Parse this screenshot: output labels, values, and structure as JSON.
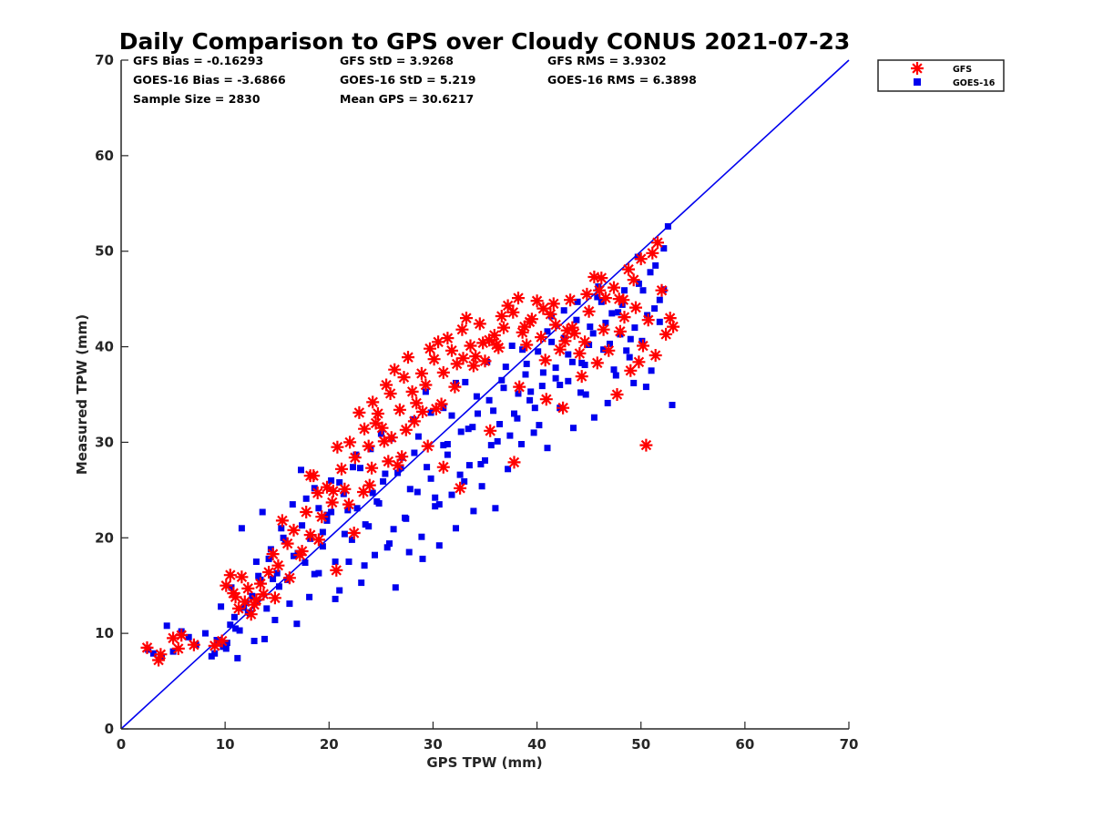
{
  "chart_data": {
    "type": "scatter",
    "title": "Daily Comparison to GPS over Cloudy CONUS 2021-07-23",
    "xlabel": "GPS TPW (mm)",
    "ylabel": "Measured TPW (mm)",
    "xlim": [
      0,
      70
    ],
    "ylim": [
      0,
      70
    ],
    "xticks": [
      0,
      10,
      20,
      30,
      40,
      50,
      60,
      70
    ],
    "yticks": [
      0,
      10,
      20,
      30,
      40,
      50,
      60,
      70
    ],
    "grid": false,
    "legend_position": "outside-top-right",
    "reference_line": {
      "x": [
        0,
        70
      ],
      "y": [
        0,
        70
      ],
      "color": "#0000ee"
    },
    "stats": {
      "gfs_bias": "GFS Bias = -0.16293",
      "gfs_std": "GFS StD = 3.9268",
      "gfs_rms": "GFS RMS = 3.9302",
      "goes_bias": "GOES-16 Bias = -3.6866",
      "goes_std": "GOES-16 StD = 5.219",
      "goes_rms": "GOES-16 RMS = 6.3898",
      "sample_size": "Sample Size = 2830",
      "mean_gps": "Mean GPS = 30.6217"
    },
    "series": [
      {
        "name": "GFS",
        "marker": "asterisk",
        "color": "#ff0000",
        "x": [
          2.5,
          3.6,
          3.8,
          5.0,
          5.5,
          5.8,
          7.0,
          9.0,
          9.7,
          10.1,
          10.5,
          10.8,
          11.0,
          11.3,
          11.6,
          11.9,
          12.2,
          12.5,
          13.0,
          13.4,
          13.7,
          14.2,
          14.6,
          15.1,
          15.5,
          16.0,
          16.6,
          17.2,
          17.8,
          18.2,
          18.5,
          18.9,
          19.3,
          19.8,
          20.3,
          20.8,
          21.2,
          21.5,
          22.0,
          22.5,
          22.9,
          23.4,
          23.8,
          24.2,
          24.7,
          25.1,
          25.5,
          25.9,
          26.3,
          26.8,
          27.2,
          27.6,
          28.0,
          28.4,
          28.9,
          29.3,
          29.7,
          30.1,
          30.5,
          31.0,
          31.4,
          31.8,
          32.3,
          32.8,
          33.2,
          33.6,
          34.1,
          34.5,
          35.0,
          35.4,
          35.9,
          36.3,
          36.8,
          37.2,
          37.7,
          38.2,
          38.6,
          39.0,
          39.5,
          40.0,
          40.4,
          40.8,
          41.3,
          41.8,
          42.2,
          42.7,
          43.2,
          43.6,
          44.1,
          44.6,
          45.0,
          45.5,
          46.0,
          46.4,
          46.9,
          47.4,
          47.9,
          48.4,
          48.8,
          49.3,
          49.8,
          50.2,
          50.7,
          51.1,
          51.6,
          52.0,
          52.8,
          53.1,
          24.5,
          26.0,
          27.0,
          29.5,
          31.0,
          32.6,
          35.5,
          37.8,
          38.3,
          40.9,
          42.5,
          44.3,
          45.8,
          47.7,
          49.0,
          50.5,
          51.4,
          52.4,
          18.2,
          20.4,
          21.9,
          23.3,
          24.1,
          25.3,
          26.6,
          28.2,
          30.3,
          32.1,
          33.9,
          36.1,
          39.3,
          41.6,
          43.4,
          46.6,
          48.3,
          50.0,
          12.8,
          14.8,
          16.2,
          17.4,
          19.0,
          20.7,
          22.4,
          23.9,
          25.7,
          27.4,
          29.0,
          30.8,
          32.9,
          34.8,
          36.6,
          38.8,
          40.6,
          42.9,
          44.8,
          46.2,
          48.0,
          49.5
        ],
        "y": [
          8.5,
          7.2,
          7.8,
          9.5,
          8.4,
          9.8,
          8.8,
          8.7,
          9.2,
          15.0,
          16.1,
          14.2,
          13.8,
          12.6,
          15.9,
          13.3,
          14.7,
          12.0,
          13.5,
          15.2,
          14.1,
          16.4,
          18.3,
          17.1,
          21.8,
          19.4,
          20.8,
          18.2,
          22.7,
          20.3,
          26.5,
          24.7,
          22.2,
          25.3,
          23.7,
          29.5,
          27.2,
          25.1,
          30.0,
          28.4,
          33.1,
          31.4,
          29.6,
          34.2,
          33.0,
          31.5,
          36.0,
          35.1,
          37.6,
          33.4,
          36.8,
          38.9,
          35.3,
          34.1,
          37.2,
          36.0,
          39.8,
          38.7,
          40.5,
          37.3,
          40.9,
          39.6,
          38.2,
          41.8,
          43.0,
          40.1,
          39.0,
          42.4,
          38.5,
          40.7,
          41.2,
          39.9,
          42.0,
          44.3,
          43.6,
          45.1,
          41.5,
          40.2,
          42.9,
          44.8,
          41.0,
          38.6,
          43.4,
          42.3,
          39.7,
          40.6,
          44.9,
          41.4,
          39.3,
          40.5,
          43.7,
          47.3,
          45.9,
          41.8,
          39.6,
          46.2,
          45.0,
          43.1,
          48.1,
          47.0,
          38.4,
          40.1,
          42.8,
          49.8,
          50.9,
          45.9,
          43.0,
          42.1,
          32.0,
          30.5,
          28.5,
          29.6,
          27.4,
          25.2,
          31.2,
          27.9,
          35.8,
          34.5,
          33.6,
          36.9,
          38.3,
          35.0,
          37.5,
          29.7,
          39.1,
          41.3,
          26.5,
          24.9,
          23.5,
          24.8,
          27.3,
          30.1,
          27.6,
          32.2,
          33.5,
          35.8,
          38.0,
          40.2,
          42.6,
          44.5,
          42.0,
          45.1,
          44.9,
          49.2,
          13.0,
          13.7,
          15.8,
          18.6,
          19.8,
          16.6,
          20.5,
          25.5,
          28.0,
          31.3,
          33.2,
          34.0,
          38.8,
          40.4,
          43.2,
          42.1,
          44.0,
          41.7,
          45.5,
          47.2,
          41.6,
          44.1
        ]
      },
      {
        "name": "GOES-16",
        "marker": "square",
        "color": "#0000ee",
        "x": [
          2.6,
          3.1,
          3.9,
          4.4,
          5.0,
          5.8,
          6.5,
          7.2,
          8.1,
          8.7,
          9.2,
          9.6,
          10.1,
          10.5,
          10.9,
          11.2,
          11.6,
          12.0,
          12.4,
          12.8,
          13.2,
          13.6,
          14.0,
          14.4,
          14.8,
          15.2,
          15.6,
          16.0,
          16.5,
          16.9,
          17.3,
          17.7,
          18.1,
          18.6,
          19.0,
          19.4,
          19.8,
          20.2,
          20.6,
          21.0,
          21.5,
          21.9,
          22.3,
          22.7,
          23.1,
          23.5,
          24.0,
          24.4,
          24.8,
          25.2,
          25.6,
          26.0,
          26.4,
          26.9,
          27.3,
          27.7,
          28.1,
          28.5,
          28.9,
          29.3,
          29.8,
          30.2,
          30.6,
          31.0,
          31.4,
          31.8,
          32.2,
          32.7,
          33.1,
          33.5,
          33.9,
          34.3,
          34.7,
          35.2,
          35.6,
          36.0,
          36.4,
          36.8,
          37.2,
          37.6,
          38.1,
          38.5,
          38.9,
          39.3,
          39.7,
          40.1,
          40.5,
          41.0,
          41.4,
          41.8,
          42.2,
          42.6,
          43.0,
          43.5,
          43.9,
          44.3,
          44.7,
          45.1,
          45.5,
          45.9,
          46.4,
          46.8,
          47.2,
          47.6,
          48.0,
          48.4,
          48.9,
          49.3,
          49.7,
          50.1,
          50.5,
          50.9,
          51.3,
          51.8,
          52.2,
          52.6,
          53.0,
          10.2,
          11.0,
          11.8,
          12.6,
          13.4,
          14.2,
          15.0,
          15.8,
          16.6,
          17.4,
          18.2,
          19.0,
          19.8,
          20.6,
          21.4,
          22.2,
          23.0,
          23.8,
          24.6,
          25.4,
          26.2,
          27.0,
          27.8,
          28.6,
          29.4,
          30.2,
          31.0,
          31.8,
          32.6,
          33.4,
          34.2,
          35.0,
          35.8,
          36.6,
          37.4,
          38.2,
          39.0,
          39.8,
          40.6,
          41.4,
          42.2,
          43.0,
          43.8,
          44.6,
          45.4,
          46.2,
          47.0,
          47.8,
          48.6,
          49.4,
          50.2,
          51.0,
          51.8,
          9.0,
          9.8,
          10.6,
          11.4,
          12.2,
          13.0,
          13.8,
          14.6,
          15.4,
          16.2,
          17.0,
          17.8,
          18.6,
          19.4,
          20.2,
          21.0,
          21.8,
          22.6,
          23.4,
          24.2,
          25.0,
          25.8,
          26.6,
          27.4,
          28.2,
          29.0,
          29.8,
          30.6,
          31.4,
          32.2,
          33.0,
          33.8,
          34.6,
          35.4,
          36.2,
          37.0,
          37.8,
          38.6,
          39.4,
          40.2,
          41.0,
          41.8,
          42.6,
          43.4,
          44.2,
          45.0,
          45.8,
          46.6,
          47.4,
          48.2,
          49.0,
          49.8,
          50.6,
          51.4,
          52.2
        ],
        "y": [
          8.3,
          7.9,
          7.5,
          10.8,
          8.1,
          10.2,
          9.6,
          8.8,
          10.0,
          7.6,
          9.3,
          12.8,
          8.4,
          10.9,
          11.7,
          7.4,
          21.0,
          13.2,
          12.1,
          9.2,
          16.0,
          22.7,
          12.6,
          18.8,
          11.4,
          14.9,
          20.0,
          15.6,
          23.5,
          11.0,
          27.1,
          17.4,
          13.8,
          25.2,
          16.3,
          19.1,
          21.8,
          22.7,
          13.6,
          25.8,
          20.4,
          17.5,
          27.4,
          23.1,
          15.3,
          21.4,
          29.3,
          18.2,
          23.6,
          25.9,
          19.0,
          30.4,
          14.8,
          27.3,
          22.1,
          18.5,
          32.4,
          24.8,
          20.1,
          35.3,
          26.2,
          23.3,
          19.2,
          33.6,
          28.7,
          24.5,
          21.0,
          31.1,
          36.3,
          27.6,
          22.8,
          33.0,
          25.4,
          38.4,
          29.7,
          23.1,
          31.9,
          35.7,
          27.2,
          40.1,
          32.5,
          29.8,
          37.1,
          34.4,
          31.0,
          39.5,
          35.9,
          29.4,
          43.2,
          37.8,
          33.6,
          40.9,
          36.4,
          31.5,
          44.7,
          38.3,
          35.0,
          42.1,
          32.6,
          46.3,
          39.7,
          34.1,
          43.5,
          37.0,
          41.3,
          45.9,
          38.9,
          36.2,
          49.4,
          40.6,
          35.8,
          47.8,
          44.0,
          42.6,
          50.3,
          52.6,
          33.9,
          9.0,
          10.5,
          12.7,
          13.9,
          15.6,
          17.8,
          16.3,
          19.7,
          18.1,
          21.3,
          19.9,
          23.1,
          22.4,
          17.5,
          24.6,
          19.8,
          27.3,
          21.2,
          23.8,
          26.7,
          20.9,
          28.4,
          25.1,
          30.6,
          27.4,
          24.2,
          29.7,
          32.8,
          26.6,
          31.4,
          34.8,
          28.1,
          33.3,
          36.5,
          30.7,
          35.1,
          38.2,
          33.6,
          37.3,
          40.5,
          36.0,
          39.2,
          42.8,
          38.1,
          41.4,
          44.7,
          40.3,
          43.6,
          39.6,
          42.0,
          45.9,
          37.5,
          44.9,
          7.9,
          8.6,
          14.8,
          10.3,
          12.2,
          17.5,
          9.4,
          15.7,
          21.0,
          13.1,
          18.4,
          24.1,
          16.2,
          20.6,
          26.0,
          14.5,
          22.9,
          28.7,
          17.1,
          24.7,
          30.9,
          19.4,
          26.8,
          22.0,
          28.9,
          17.8,
          33.1,
          23.5,
          29.8,
          36.2,
          25.9,
          31.6,
          27.7,
          34.4,
          30.1,
          37.9,
          33.0,
          39.7,
          35.3,
          31.8,
          41.6,
          36.7,
          43.8,
          38.4,
          35.2,
          40.2,
          45.2,
          42.5,
          37.6,
          44.4,
          40.8,
          46.6,
          43.3,
          48.5,
          46.0
        ]
      }
    ]
  }
}
